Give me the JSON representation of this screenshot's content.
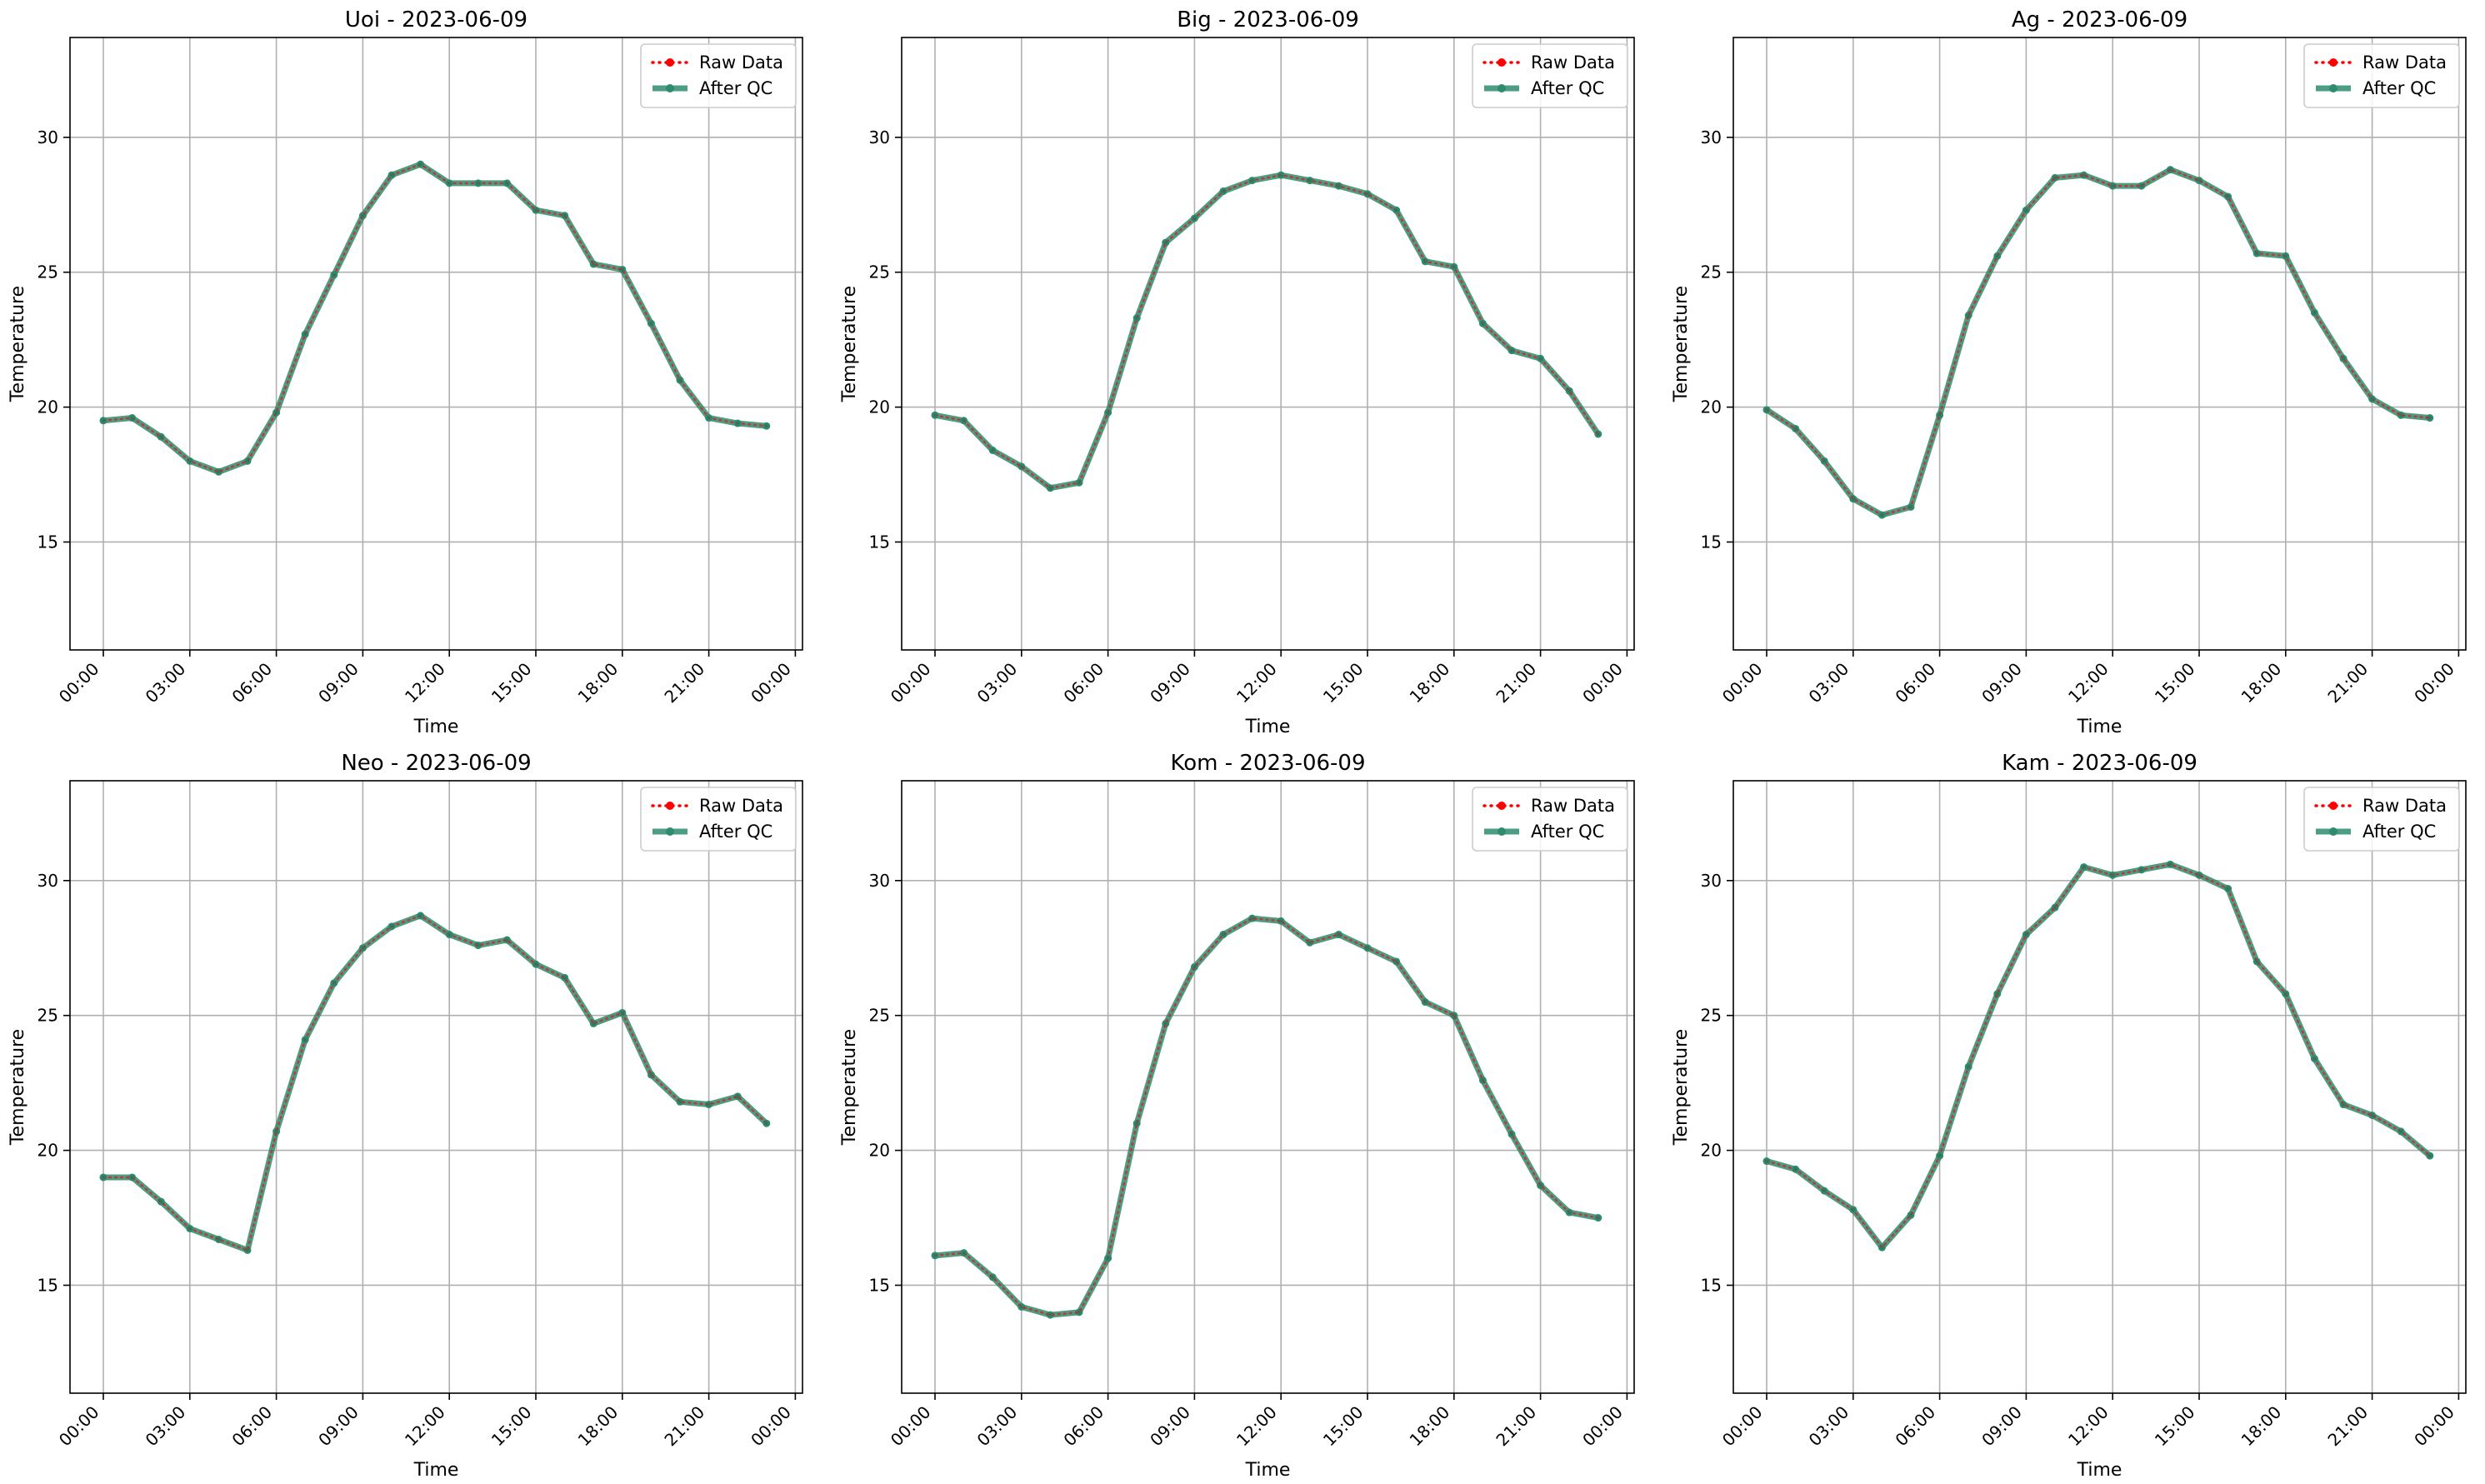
{
  "chart_data": [
    {
      "type": "line",
      "title": "Uoi - 2023-06-09",
      "xlabel": "Time",
      "ylabel": "Temperature",
      "x": [
        0,
        1,
        2,
        3,
        4,
        5,
        6,
        7,
        8,
        9,
        10,
        11,
        12,
        13,
        14,
        15,
        16,
        17,
        18,
        19,
        20,
        21,
        22,
        23
      ],
      "xticks": [
        "00:00",
        "03:00",
        "06:00",
        "09:00",
        "12:00",
        "15:00",
        "18:00",
        "21:00",
        "00:00"
      ],
      "yticks": [
        15,
        20,
        25,
        30
      ],
      "ylim": [
        11,
        33.7
      ],
      "grid": true,
      "legend_placement": "upper right",
      "series": [
        {
          "name": "Raw Data",
          "style": "dotted-red",
          "values": [
            19.5,
            19.6,
            18.9,
            18.0,
            17.6,
            18.0,
            19.8,
            22.7,
            24.9,
            27.1,
            28.6,
            29.0,
            28.3,
            28.3,
            28.3,
            27.3,
            27.1,
            25.3,
            25.1,
            23.1,
            21.0,
            19.6,
            19.4,
            19.3
          ]
        },
        {
          "name": "After QC",
          "style": "solid-green",
          "values": [
            19.5,
            19.6,
            18.9,
            18.0,
            17.6,
            18.0,
            19.8,
            22.7,
            24.9,
            27.1,
            28.6,
            29.0,
            28.3,
            28.3,
            28.3,
            27.3,
            27.1,
            25.3,
            25.1,
            23.1,
            21.0,
            19.6,
            19.4,
            19.3
          ]
        }
      ]
    },
    {
      "type": "line",
      "title": "Big - 2023-06-09",
      "xlabel": "Time",
      "ylabel": "Temperature",
      "x": [
        0,
        1,
        2,
        3,
        4,
        5,
        6,
        7,
        8,
        9,
        10,
        11,
        12,
        13,
        14,
        15,
        16,
        17,
        18,
        19,
        20,
        21,
        22,
        23
      ],
      "xticks": [
        "00:00",
        "03:00",
        "06:00",
        "09:00",
        "12:00",
        "15:00",
        "18:00",
        "21:00",
        "00:00"
      ],
      "yticks": [
        15,
        20,
        25,
        30
      ],
      "ylim": [
        11,
        33.7
      ],
      "grid": true,
      "legend_placement": "upper right",
      "series": [
        {
          "name": "Raw Data",
          "style": "dotted-red",
          "values": [
            19.7,
            19.5,
            18.4,
            17.8,
            17.0,
            17.2,
            19.8,
            23.3,
            26.1,
            27.0,
            28.0,
            28.4,
            28.6,
            28.4,
            28.2,
            27.9,
            27.3,
            25.4,
            25.2,
            23.1,
            22.1,
            21.8,
            20.6,
            19.0
          ]
        },
        {
          "name": "After QC",
          "style": "solid-green",
          "values": [
            19.7,
            19.5,
            18.4,
            17.8,
            17.0,
            17.2,
            19.8,
            23.3,
            26.1,
            27.0,
            28.0,
            28.4,
            28.6,
            28.4,
            28.2,
            27.9,
            27.3,
            25.4,
            25.2,
            23.1,
            22.1,
            21.8,
            20.6,
            19.0
          ]
        }
      ]
    },
    {
      "type": "line",
      "title": "Ag - 2023-06-09",
      "xlabel": "Time",
      "ylabel": "Temperature",
      "x": [
        0,
        1,
        2,
        3,
        4,
        5,
        6,
        7,
        8,
        9,
        10,
        11,
        12,
        13,
        14,
        15,
        16,
        17,
        18,
        19,
        20,
        21,
        22,
        23
      ],
      "xticks": [
        "00:00",
        "03:00",
        "06:00",
        "09:00",
        "12:00",
        "15:00",
        "18:00",
        "21:00",
        "00:00"
      ],
      "yticks": [
        15,
        20,
        25,
        30
      ],
      "ylim": [
        11,
        33.7
      ],
      "grid": true,
      "legend_placement": "upper right",
      "series": [
        {
          "name": "Raw Data",
          "style": "dotted-red",
          "values": [
            19.9,
            19.2,
            18.0,
            16.6,
            16.0,
            16.3,
            19.7,
            23.4,
            25.6,
            27.3,
            28.5,
            28.6,
            28.2,
            28.2,
            28.8,
            28.4,
            27.8,
            25.7,
            25.6,
            23.5,
            21.8,
            20.3,
            19.7,
            19.6
          ]
        },
        {
          "name": "After QC",
          "style": "solid-green",
          "values": [
            19.9,
            19.2,
            18.0,
            16.6,
            16.0,
            16.3,
            19.7,
            23.4,
            25.6,
            27.3,
            28.5,
            28.6,
            28.2,
            28.2,
            28.8,
            28.4,
            27.8,
            25.7,
            25.6,
            23.5,
            21.8,
            20.3,
            19.7,
            19.6
          ]
        }
      ]
    },
    {
      "type": "line",
      "title": "Neo - 2023-06-09",
      "xlabel": "Time",
      "ylabel": "Temperature",
      "x": [
        0,
        1,
        2,
        3,
        4,
        5,
        6,
        7,
        8,
        9,
        10,
        11,
        12,
        13,
        14,
        15,
        16,
        17,
        18,
        19,
        20,
        21,
        22,
        23
      ],
      "xticks": [
        "00:00",
        "03:00",
        "06:00",
        "09:00",
        "12:00",
        "15:00",
        "18:00",
        "21:00",
        "00:00"
      ],
      "yticks": [
        15,
        20,
        25,
        30
      ],
      "ylim": [
        11,
        33.7
      ],
      "grid": true,
      "legend_placement": "upper right",
      "series": [
        {
          "name": "Raw Data",
          "style": "dotted-red",
          "values": [
            19.0,
            19.0,
            18.1,
            17.1,
            16.7,
            16.3,
            20.7,
            24.1,
            26.2,
            27.5,
            28.3,
            28.7,
            28.0,
            27.6,
            27.8,
            26.9,
            26.4,
            24.7,
            25.1,
            22.8,
            21.8,
            21.7,
            22.0,
            21.0
          ]
        },
        {
          "name": "After QC",
          "style": "solid-green",
          "values": [
            19.0,
            19.0,
            18.1,
            17.1,
            16.7,
            16.3,
            20.7,
            24.1,
            26.2,
            27.5,
            28.3,
            28.7,
            28.0,
            27.6,
            27.8,
            26.9,
            26.4,
            24.7,
            25.1,
            22.8,
            21.8,
            21.7,
            22.0,
            21.0
          ]
        }
      ]
    },
    {
      "type": "line",
      "title": "Kom - 2023-06-09",
      "xlabel": "Time",
      "ylabel": "Temperature",
      "x": [
        0,
        1,
        2,
        3,
        4,
        5,
        6,
        7,
        8,
        9,
        10,
        11,
        12,
        13,
        14,
        15,
        16,
        17,
        18,
        19,
        20,
        21,
        22,
        23
      ],
      "xticks": [
        "00:00",
        "03:00",
        "06:00",
        "09:00",
        "12:00",
        "15:00",
        "18:00",
        "21:00",
        "00:00"
      ],
      "yticks": [
        15,
        20,
        25,
        30
      ],
      "ylim": [
        11,
        33.7
      ],
      "grid": true,
      "legend_placement": "upper right",
      "series": [
        {
          "name": "Raw Data",
          "style": "dotted-red",
          "values": [
            16.1,
            16.2,
            15.3,
            14.2,
            13.9,
            14.0,
            16.0,
            21.0,
            24.7,
            26.8,
            28.0,
            28.6,
            28.5,
            27.7,
            28.0,
            27.5,
            27.0,
            25.5,
            25.0,
            22.6,
            20.6,
            18.7,
            17.7,
            17.5
          ]
        },
        {
          "name": "After QC",
          "style": "solid-green",
          "values": [
            16.1,
            16.2,
            15.3,
            14.2,
            13.9,
            14.0,
            16.0,
            21.0,
            24.7,
            26.8,
            28.0,
            28.6,
            28.5,
            27.7,
            28.0,
            27.5,
            27.0,
            25.5,
            25.0,
            22.6,
            20.6,
            18.7,
            17.7,
            17.5
          ]
        }
      ]
    },
    {
      "type": "line",
      "title": "Kam - 2023-06-09",
      "xlabel": "Time",
      "ylabel": "Temperature",
      "x": [
        0,
        1,
        2,
        3,
        4,
        5,
        6,
        7,
        8,
        9,
        10,
        11,
        12,
        13,
        14,
        15,
        16,
        17,
        18,
        19,
        20,
        21,
        22,
        23
      ],
      "xticks": [
        "00:00",
        "03:00",
        "06:00",
        "09:00",
        "12:00",
        "15:00",
        "18:00",
        "21:00",
        "00:00"
      ],
      "yticks": [
        15,
        20,
        25,
        30
      ],
      "ylim": [
        11,
        33.7
      ],
      "grid": true,
      "legend_placement": "upper right",
      "series": [
        {
          "name": "Raw Data",
          "style": "dotted-red",
          "values": [
            19.6,
            19.3,
            18.5,
            17.8,
            16.4,
            17.6,
            19.8,
            23.1,
            25.8,
            28.0,
            29.0,
            30.5,
            30.2,
            30.4,
            30.6,
            30.2,
            29.7,
            27.0,
            25.8,
            23.4,
            21.7,
            21.3,
            20.7,
            19.8
          ]
        },
        {
          "name": "After QC",
          "style": "solid-green",
          "values": [
            19.6,
            19.3,
            18.5,
            17.8,
            16.4,
            17.6,
            19.8,
            23.1,
            25.8,
            28.0,
            29.0,
            30.5,
            30.2,
            30.4,
            30.6,
            30.2,
            29.7,
            27.0,
            25.8,
            23.4,
            21.7,
            21.3,
            20.7,
            19.8
          ]
        }
      ]
    }
  ],
  "colors": {
    "raw": "#ff0000",
    "qc": "#2e8b6e",
    "grid": "#b0b0b0",
    "axes": "#000000"
  }
}
